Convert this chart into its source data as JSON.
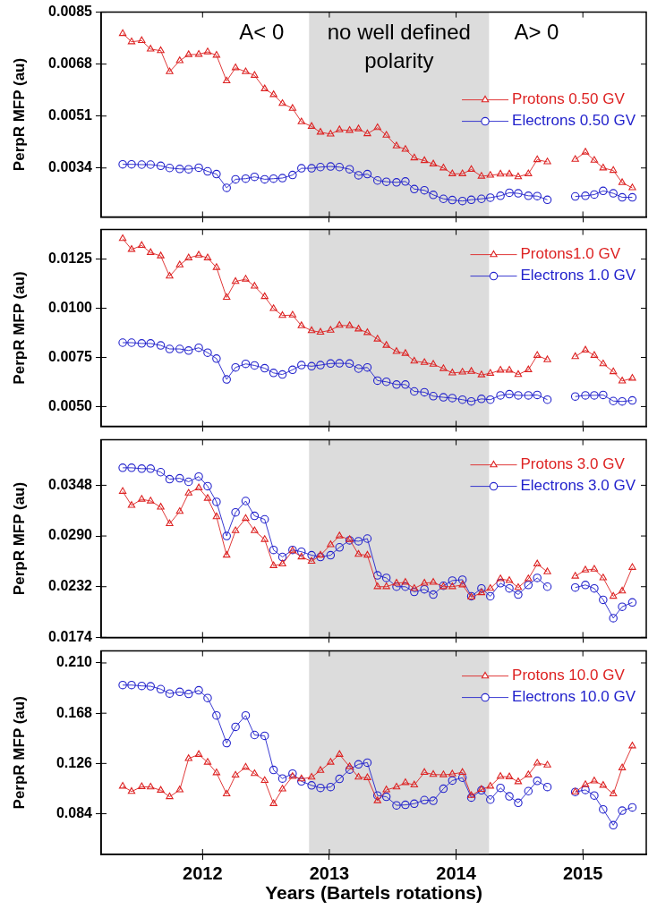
{
  "chart_data": [
    {
      "type": "line",
      "ylabel": "PerpR MFP (au)",
      "legend": "top right",
      "tick_labels": "y",
      "x": [
        2011.37,
        2011.44,
        2011.52,
        2011.59,
        2011.67,
        2011.74,
        2011.82,
        2011.89,
        2011.97,
        2012.04,
        2012.11,
        2012.19,
        2012.26,
        2012.34,
        2012.41,
        2012.49,
        2012.56,
        2012.63,
        2012.71,
        2012.78,
        2012.86,
        2012.93,
        2013.01,
        2013.08,
        2013.16,
        2013.23,
        2013.3,
        2013.38,
        2013.45,
        2013.53,
        2013.6,
        2013.67,
        2013.75,
        2013.82,
        2013.9,
        2013.97,
        2014.05,
        2014.12,
        2014.2,
        2014.27,
        2014.35,
        2014.42,
        2014.49,
        2014.57,
        2014.64,
        2014.72,
        2014.79,
        2014.87,
        2014.94,
        2015.02,
        2015.09,
        2015.16,
        2015.24,
        2015.31,
        2015.39
      ],
      "xlim": [
        2011.2,
        2015.5
      ],
      "xticks": [
        2012,
        2013,
        2014,
        2015
      ],
      "ylim": [
        0.0018,
        0.0085
      ],
      "yticks": [
        0.0034,
        0.0051,
        0.0068,
        0.0085
      ],
      "bands": [
        {
          "axis": "x",
          "from": 2012.84,
          "to": 2014.26,
          "color": "#dcdcdc"
        }
      ],
      "annotations": [
        "A< 0",
        "no well defined polarity",
        "A> 0"
      ],
      "series": [
        {
          "name": "Protons 0.50 GV",
          "color": "#dd2222",
          "marker": "triangle",
          "values": [
            0.0078,
            0.00753,
            0.00757,
            0.00729,
            0.00724,
            0.00655,
            0.00691,
            0.00711,
            0.00712,
            0.0072,
            0.00709,
            0.00625,
            0.00668,
            0.00655,
            0.00643,
            0.00599,
            0.0058,
            0.00551,
            0.00535,
            0.00491,
            0.00476,
            0.00457,
            0.00451,
            0.00465,
            0.00463,
            0.00468,
            0.00452,
            0.00472,
            0.00447,
            0.00412,
            0.00401,
            0.00373,
            0.00364,
            0.00353,
            0.0034,
            0.00321,
            0.00321,
            0.00335,
            0.00313,
            0.00316,
            0.0032,
            0.0032,
            0.00311,
            0.00321,
            0.00367,
            0.0036,
            null,
            null,
            0.00368,
            0.00392,
            0.00365,
            0.0034,
            0.00332,
            0.00292,
            0.00275
          ]
        },
        {
          "name": "Electrons 0.50 GV",
          "color": "#2222cc",
          "marker": "circle",
          "values": [
            0.00352,
            0.00352,
            0.00351,
            0.00351,
            0.00347,
            0.0034,
            0.00337,
            0.00336,
            0.00341,
            0.00329,
            0.0032,
            0.00275,
            0.00303,
            0.00305,
            0.00311,
            0.00303,
            0.00305,
            0.00307,
            0.00317,
            0.00339,
            0.00339,
            0.00343,
            0.00345,
            0.00343,
            0.00336,
            0.00316,
            0.0032,
            0.00299,
            0.00295,
            0.00293,
            0.00296,
            0.00271,
            0.00267,
            0.00252,
            0.00239,
            0.00235,
            0.00232,
            0.00236,
            0.00239,
            0.00243,
            0.00249,
            0.00259,
            0.00257,
            0.00249,
            0.00248,
            0.00236,
            null,
            null,
            0.00247,
            0.00249,
            0.00253,
            0.00265,
            0.00257,
            0.00244,
            0.00244
          ]
        }
      ]
    },
    {
      "type": "line",
      "ylabel": "PerpR MFP (au)",
      "legend": "top right",
      "tick_labels": "y",
      "x": [
        2011.37,
        2011.44,
        2011.52,
        2011.59,
        2011.67,
        2011.74,
        2011.82,
        2011.89,
        2011.97,
        2012.04,
        2012.11,
        2012.19,
        2012.26,
        2012.34,
        2012.41,
        2012.49,
        2012.56,
        2012.63,
        2012.71,
        2012.78,
        2012.86,
        2012.93,
        2013.01,
        2013.08,
        2013.16,
        2013.23,
        2013.3,
        2013.38,
        2013.45,
        2013.53,
        2013.6,
        2013.67,
        2013.75,
        2013.82,
        2013.9,
        2013.97,
        2014.05,
        2014.12,
        2014.2,
        2014.27,
        2014.35,
        2014.42,
        2014.49,
        2014.57,
        2014.64,
        2014.72,
        2014.79,
        2014.87,
        2014.94,
        2015.02,
        2015.09,
        2015.16,
        2015.24,
        2015.31,
        2015.39
      ],
      "xlim": [
        2011.2,
        2015.5
      ],
      "xticks": [
        2012,
        2013,
        2014,
        2015
      ],
      "ylim": [
        0.004,
        0.014
      ],
      "yticks": [
        {
          "value": 0.005,
          "label": "0.0050"
        },
        0.0075,
        {
          "value": 0.01,
          "label": "0.0100"
        },
        0.0125
      ],
      "bands": [
        {
          "axis": "x",
          "from": 2012.84,
          "to": 2014.26,
          "color": "#dcdcdc"
        }
      ],
      "series": [
        {
          "name": "Protons1.0 GV",
          "color": "#dd2222",
          "marker": "triangle",
          "values": [
            0.01354,
            0.01299,
            0.01319,
            0.01283,
            0.01266,
            0.01163,
            0.0122,
            0.01256,
            0.0127,
            0.01256,
            0.01207,
            0.01055,
            0.01136,
            0.01148,
            0.01112,
            0.01059,
            0.00998,
            0.00963,
            0.00965,
            0.00911,
            0.00886,
            0.00878,
            0.00888,
            0.00913,
            0.00911,
            0.00894,
            0.00876,
            0.00843,
            0.00811,
            0.0078,
            0.0077,
            0.00731,
            0.00724,
            0.00715,
            0.00693,
            0.00671,
            0.00675,
            0.00679,
            0.00661,
            0.00669,
            0.00685,
            0.00685,
            0.00663,
            0.00687,
            0.0076,
            0.00738,
            null,
            null,
            0.00754,
            0.00787,
            0.0076,
            0.00717,
            0.00677,
            0.0063,
            0.00644
          ]
        },
        {
          "name": "Electrons 1.0 GV",
          "color": "#2222cc",
          "marker": "circle",
          "values": [
            0.00825,
            0.00825,
            0.00821,
            0.00821,
            0.00811,
            0.00793,
            0.00793,
            0.00785,
            0.00799,
            0.00774,
            0.00744,
            0.00638,
            0.00699,
            0.00717,
            0.00709,
            0.00695,
            0.00671,
            0.00663,
            0.00687,
            0.00711,
            0.00705,
            0.00711,
            0.00719,
            0.0072,
            0.00719,
            0.00693,
            0.00699,
            0.00632,
            0.00626,
            0.00612,
            0.00612,
            0.00577,
            0.00573,
            0.00553,
            0.00547,
            0.00543,
            0.00535,
            0.00526,
            0.00539,
            0.00535,
            0.00557,
            0.00563,
            0.00557,
            0.00557,
            0.00559,
            0.00535,
            null,
            null,
            0.00551,
            0.00557,
            0.00557,
            0.00559,
            0.00528,
            0.00526,
            0.00531
          ]
        }
      ]
    },
    {
      "type": "line",
      "ylabel": "PerpR MFP (au)",
      "legend": "top right",
      "tick_labels": "y",
      "x": [
        2011.37,
        2011.44,
        2011.52,
        2011.59,
        2011.67,
        2011.74,
        2011.82,
        2011.89,
        2011.97,
        2012.04,
        2012.11,
        2012.19,
        2012.26,
        2012.34,
        2012.41,
        2012.49,
        2012.56,
        2012.63,
        2012.71,
        2012.78,
        2012.86,
        2012.93,
        2013.01,
        2013.08,
        2013.16,
        2013.23,
        2013.3,
        2013.38,
        2013.45,
        2013.53,
        2013.6,
        2013.67,
        2013.75,
        2013.82,
        2013.9,
        2013.97,
        2014.05,
        2014.12,
        2014.2,
        2014.27,
        2014.35,
        2014.42,
        2014.49,
        2014.57,
        2014.64,
        2014.72,
        2014.79,
        2014.87,
        2014.94,
        2015.02,
        2015.09,
        2015.16,
        2015.24,
        2015.31,
        2015.39
      ],
      "xlim": [
        2011.2,
        2015.5
      ],
      "xticks": [
        2012,
        2013,
        2014,
        2015
      ],
      "ylim": [
        0.0174,
        0.04
      ],
      "yticks": [
        0.0174,
        0.0232,
        {
          "value": 0.029,
          "label": "0.0290"
        },
        0.0348
      ],
      "bands": [
        {
          "axis": "x",
          "from": 2012.84,
          "to": 2014.26,
          "color": "#dcdcdc"
        }
      ],
      "series": [
        {
          "name": "Protons 3.0 GV",
          "color": "#dd2222",
          "marker": "triangle",
          "values": [
            0.0341,
            0.0325,
            0.0332,
            0.033,
            0.0323,
            0.0304,
            0.0318,
            0.0339,
            0.0345,
            0.0333,
            0.0312,
            0.0268,
            0.0296,
            0.031,
            0.0296,
            0.0286,
            0.0256,
            0.0258,
            0.0273,
            0.0266,
            0.0261,
            0.0268,
            0.028,
            0.029,
            0.0286,
            0.0269,
            0.0268,
            0.0232,
            0.0232,
            0.0236,
            0.0237,
            0.023,
            0.0236,
            0.0237,
            0.0232,
            0.0232,
            0.0234,
            0.022,
            0.0225,
            0.023,
            0.0241,
            0.0239,
            0.0231,
            0.0241,
            0.0258,
            0.0249,
            null,
            null,
            0.0244,
            0.0251,
            0.0252,
            0.0242,
            0.0221,
            0.0227,
            0.0254
          ]
        },
        {
          "name": "Electrons 3.0 GV",
          "color": "#2222cc",
          "marker": "circle",
          "values": [
            0.0368,
            0.0368,
            0.0367,
            0.0367,
            0.0363,
            0.0355,
            0.0356,
            0.0352,
            0.0358,
            0.0347,
            0.0329,
            0.029,
            0.0317,
            0.033,
            0.0313,
            0.0309,
            0.0274,
            0.0266,
            0.0274,
            0.0272,
            0.0268,
            0.0266,
            0.0268,
            0.0277,
            0.0285,
            0.0284,
            0.0287,
            0.0245,
            0.0242,
            0.0232,
            0.0232,
            0.0226,
            0.0229,
            0.0223,
            0.0233,
            0.0239,
            0.024,
            0.0221,
            0.023,
            0.0221,
            0.0236,
            0.023,
            0.0223,
            0.0234,
            0.0242,
            0.0232,
            null,
            null,
            0.0231,
            0.0234,
            0.023,
            0.0217,
            0.0196,
            0.0209,
            0.0214
          ]
        }
      ]
    },
    {
      "type": "line",
      "ylabel": "PerpR MFP (au)",
      "xlabel": "Years (Bartels rotations)",
      "legend": "top right",
      "x": [
        2011.37,
        2011.44,
        2011.52,
        2011.59,
        2011.67,
        2011.74,
        2011.82,
        2011.89,
        2011.97,
        2012.04,
        2012.11,
        2012.19,
        2012.26,
        2012.34,
        2012.41,
        2012.49,
        2012.56,
        2012.63,
        2012.71,
        2012.78,
        2012.86,
        2012.93,
        2013.01,
        2013.08,
        2013.16,
        2013.23,
        2013.3,
        2013.38,
        2013.45,
        2013.53,
        2013.6,
        2013.67,
        2013.75,
        2013.82,
        2013.9,
        2013.97,
        2014.05,
        2014.12,
        2014.2,
        2014.27,
        2014.35,
        2014.42,
        2014.49,
        2014.57,
        2014.64,
        2014.72,
        2014.79,
        2014.87,
        2014.94,
        2015.02,
        2015.09,
        2015.16,
        2015.24,
        2015.31,
        2015.39
      ],
      "xlim": [
        2011.2,
        2015.5
      ],
      "xticks": [
        2012,
        2013,
        2014,
        2015
      ],
      "ylim": [
        0.05,
        0.22
      ],
      "yticks": [
        0.084,
        0.126,
        0.168,
        {
          "value": 0.21,
          "label": "0.210"
        }
      ],
      "bands": [
        {
          "axis": "x",
          "from": 2012.84,
          "to": 2014.26,
          "color": "#dcdcdc"
        }
      ],
      "series": [
        {
          "name": "Protons 10.0 GV",
          "color": "#dd2222",
          "marker": "triangle",
          "values": [
            0.107,
            0.1026,
            0.1066,
            0.1063,
            0.1036,
            0.0982,
            0.1039,
            0.1301,
            0.1335,
            0.127,
            0.1182,
            0.1005,
            0.1162,
            0.1229,
            0.1175,
            0.1117,
            0.0924,
            0.1046,
            0.1151,
            0.1131,
            0.1145,
            0.1202,
            0.127,
            0.1335,
            0.1233,
            0.1145,
            0.1141,
            0.0948,
            0.1039,
            0.1063,
            0.11,
            0.108,
            0.1185,
            0.1168,
            0.1165,
            0.1172,
            0.1185,
            0.0992,
            0.1043,
            0.107,
            0.1151,
            0.1148,
            0.1107,
            0.1165,
            0.1263,
            0.1246,
            null,
            null,
            0.1022,
            0.1083,
            0.1114,
            0.1077,
            0.1005,
            0.1223,
            0.1406
          ]
        },
        {
          "name": "Electrons 10.0 GV",
          "color": "#2222cc",
          "marker": "circle",
          "values": [
            0.1915,
            0.1915,
            0.1908,
            0.1905,
            0.1881,
            0.1844,
            0.1858,
            0.1841,
            0.1871,
            0.1807,
            0.1661,
            0.143,
            0.1566,
            0.1661,
            0.1498,
            0.1491,
            0.1206,
            0.1134,
            0.1175,
            0.1111,
            0.1077,
            0.1056,
            0.1063,
            0.1131,
            0.1209,
            0.1253,
            0.1267,
            0.0992,
            0.0982,
            0.091,
            0.0914,
            0.0924,
            0.0954,
            0.0948,
            0.1049,
            0.1117,
            0.1141,
            0.0975,
            0.1036,
            0.0958,
            0.1056,
            0.0985,
            0.0931,
            0.1029,
            0.1114,
            0.1063,
            null,
            null,
            0.1022,
            0.1039,
            0.0992,
            0.0876,
            0.0744,
            0.0866,
            0.0893
          ]
        }
      ]
    }
  ]
}
